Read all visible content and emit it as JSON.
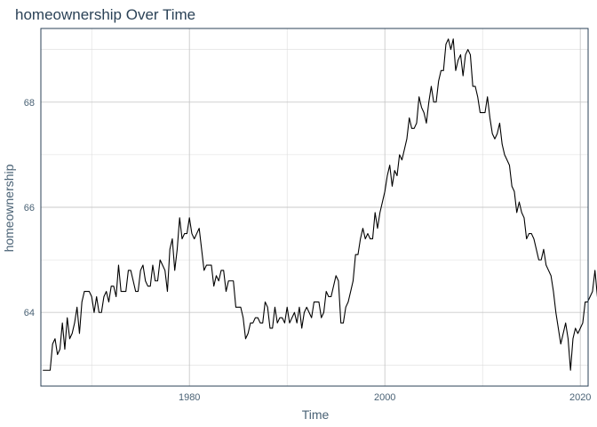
{
  "chart_data": {
    "type": "line",
    "title": "homeownership Over Time",
    "xlabel": "Time",
    "ylabel": "homeownership",
    "xlim": [
      1964.8,
      2020.8
    ],
    "ylim": [
      62.6,
      69.4
    ],
    "x_ticks": [
      1980,
      2000,
      2020
    ],
    "y_ticks": [
      64,
      66,
      68
    ],
    "x_tick_labels": [
      "1980",
      "2000",
      "2020"
    ],
    "y_tick_labels": [
      "64",
      "66",
      "68"
    ],
    "grid": true,
    "legend": "none",
    "series": [
      {
        "color": "#000000",
        "x_start": 1965.0,
        "x_step": 0.25,
        "values": [
          62.9,
          62.9,
          62.9,
          62.9,
          63.4,
          63.5,
          63.2,
          63.3,
          63.8,
          63.3,
          63.9,
          63.5,
          63.6,
          63.8,
          64.1,
          63.6,
          64.2,
          64.4,
          64.4,
          64.4,
          64.3,
          64.0,
          64.3,
          64.0,
          64.0,
          64.3,
          64.4,
          64.2,
          64.5,
          64.5,
          64.3,
          64.9,
          64.4,
          64.4,
          64.4,
          64.8,
          64.8,
          64.6,
          64.4,
          64.4,
          64.8,
          64.9,
          64.6,
          64.5,
          64.5,
          64.9,
          64.6,
          64.6,
          65.0,
          64.9,
          64.8,
          64.4,
          65.2,
          65.4,
          64.8,
          65.2,
          65.8,
          65.4,
          65.5,
          65.5,
          65.8,
          65.5,
          65.4,
          65.5,
          65.6,
          65.2,
          64.8,
          64.9,
          64.9,
          64.9,
          64.5,
          64.7,
          64.6,
          64.8,
          64.8,
          64.4,
          64.6,
          64.6,
          64.6,
          64.1,
          64.1,
          64.1,
          63.9,
          63.5,
          63.6,
          63.8,
          63.8,
          63.9,
          63.9,
          63.8,
          63.8,
          64.2,
          64.1,
          63.7,
          63.7,
          64.1,
          63.8,
          63.9,
          63.9,
          63.8,
          64.1,
          63.8,
          63.9,
          64.0,
          63.8,
          64.1,
          63.7,
          64.0,
          64.1,
          64.0,
          63.9,
          64.2,
          64.2,
          64.2,
          63.9,
          64.0,
          64.4,
          64.3,
          64.3,
          64.5,
          64.7,
          64.6,
          63.8,
          63.8,
          64.1,
          64.2,
          64.4,
          64.6,
          65.1,
          65.1,
          65.4,
          65.6,
          65.4,
          65.5,
          65.4,
          65.4,
          65.9,
          65.6,
          65.9,
          66.1,
          66.3,
          66.6,
          66.8,
          66.4,
          66.7,
          66.6,
          67.0,
          66.9,
          67.1,
          67.3,
          67.7,
          67.5,
          67.5,
          67.6,
          68.1,
          67.9,
          67.8,
          67.6,
          68.0,
          68.3,
          68.0,
          68.0,
          68.4,
          68.6,
          68.6,
          69.1,
          69.2,
          69.0,
          69.2,
          68.6,
          68.8,
          68.9,
          68.5,
          68.9,
          69.0,
          68.9,
          68.3,
          68.3,
          68.1,
          67.8,
          67.8,
          67.8,
          68.1,
          67.7,
          67.4,
          67.3,
          67.4,
          67.6,
          67.2,
          67.0,
          66.9,
          66.8,
          66.4,
          66.3,
          65.9,
          66.1,
          65.9,
          65.8,
          65.4,
          65.5,
          65.5,
          65.4,
          65.2,
          65.0,
          65.0,
          65.2,
          64.9,
          64.8,
          64.7,
          64.4,
          64.0,
          63.7,
          63.4,
          63.6,
          63.8,
          63.5,
          62.9,
          63.5,
          63.7,
          63.6,
          63.7,
          63.8,
          64.2,
          64.2,
          64.3,
          64.4,
          64.8,
          64.3,
          64.1,
          64.8
        ]
      }
    ]
  }
}
